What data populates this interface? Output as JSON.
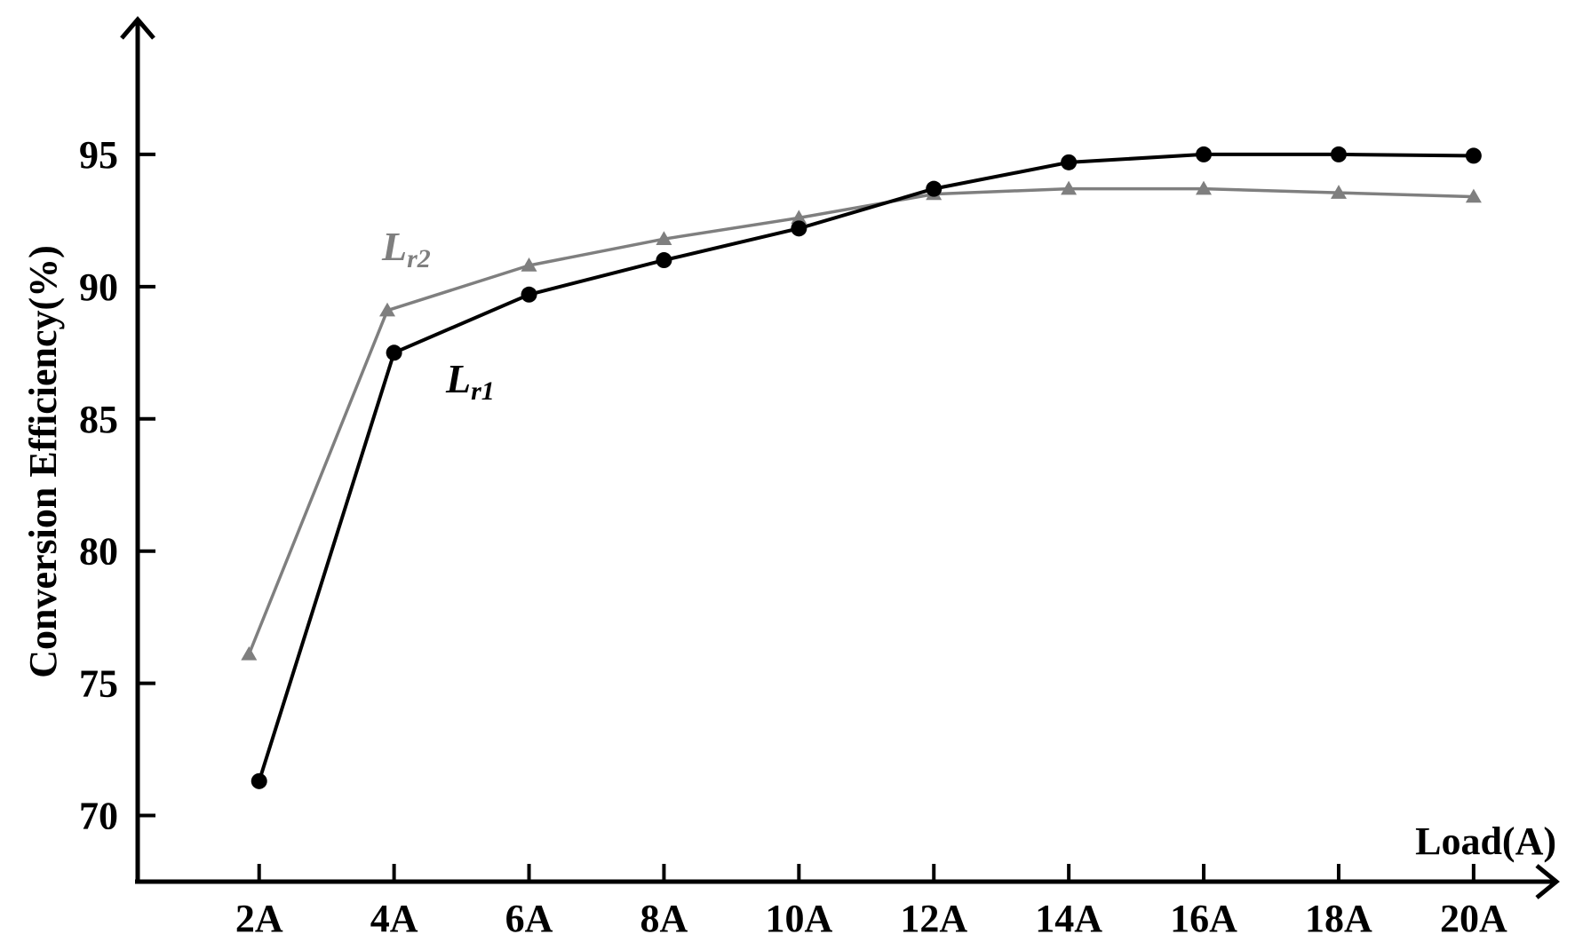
{
  "chart_data": {
    "type": "line",
    "title": "",
    "xlabel": "Load(A)",
    "ylabel": "Conversion Efficiency(%)",
    "categories": [
      "2A",
      "4A",
      "6A",
      "8A",
      "10A",
      "12A",
      "14A",
      "16A",
      "18A",
      "20A"
    ],
    "x_values": [
      2,
      4,
      6,
      8,
      10,
      12,
      14,
      16,
      18,
      20
    ],
    "y_ticks": [
      70,
      75,
      80,
      85,
      90,
      95
    ],
    "ylim": [
      67.5,
      100
    ],
    "xlim": [
      0.2,
      21.2
    ],
    "grid": false,
    "legend": "inline labels",
    "series": [
      {
        "name_main": "L",
        "name_sub": "r1",
        "color": "#000000",
        "marker": "circle",
        "x": [
          2,
          4,
          6,
          8,
          10,
          12,
          14,
          16,
          18,
          20
        ],
        "values": [
          71.3,
          87.5,
          89.7,
          91.0,
          92.2,
          93.7,
          94.7,
          95.0,
          95.0,
          94.95
        ]
      },
      {
        "name_main": "L",
        "name_sub": "r2",
        "color": "#7f7f7f",
        "marker": "triangle",
        "x": [
          1.85,
          3.9,
          6,
          8,
          10,
          12,
          14,
          16,
          18,
          20
        ],
        "values": [
          76.1,
          89.1,
          90.8,
          91.8,
          92.6,
          93.5,
          93.7,
          93.7,
          93.55,
          93.4
        ]
      }
    ]
  }
}
